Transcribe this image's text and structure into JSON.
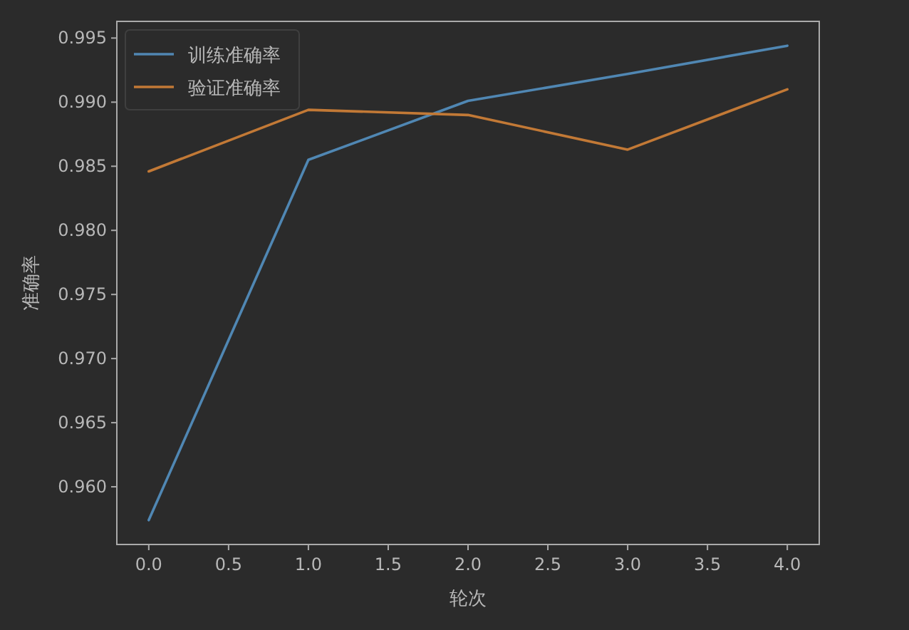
{
  "chart_data": {
    "type": "line",
    "xlabel": "轮次",
    "ylabel": "准确率",
    "x": [
      0,
      1,
      2,
      3,
      4
    ],
    "series": [
      {
        "name": "训练准确率",
        "color": "#5087b3",
        "values": [
          0.9574,
          0.9855,
          0.9901,
          0.9922,
          0.9944
        ]
      },
      {
        "name": "验证准确率",
        "color": "#c27936",
        "values": [
          0.9846,
          0.9894,
          0.989,
          0.9863,
          0.991
        ]
      }
    ],
    "xlim": [
      -0.2,
      4.2
    ],
    "xticks": [
      {
        "value": 0,
        "label": "0.0"
      },
      {
        "value": 0.5,
        "label": "0.5"
      },
      {
        "value": 1,
        "label": "1.0"
      },
      {
        "value": 1.5,
        "label": "1.5"
      },
      {
        "value": 2,
        "label": "2.0"
      },
      {
        "value": 2.5,
        "label": "2.5"
      },
      {
        "value": 3,
        "label": "3.0"
      },
      {
        "value": 3.5,
        "label": "3.5"
      },
      {
        "value": 4,
        "label": "4.0"
      }
    ],
    "ylim": [
      0.9555,
      0.9963
    ],
    "yticks": [
      {
        "value": 0.96,
        "label": "0.960"
      },
      {
        "value": 0.965,
        "label": "0.965"
      },
      {
        "value": 0.97,
        "label": "0.970"
      },
      {
        "value": 0.975,
        "label": "0.975"
      },
      {
        "value": 0.98,
        "label": "0.980"
      },
      {
        "value": 0.985,
        "label": "0.985"
      },
      {
        "value": 0.99,
        "label": "0.990"
      },
      {
        "value": 0.995,
        "label": "0.995"
      }
    ],
    "legend": "top left",
    "grid": false,
    "marker": "none",
    "line_style": "solid"
  }
}
